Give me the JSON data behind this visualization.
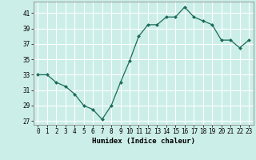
{
  "x": [
    0,
    1,
    2,
    3,
    4,
    5,
    6,
    7,
    8,
    9,
    10,
    11,
    12,
    13,
    14,
    15,
    16,
    17,
    18,
    19,
    20,
    21,
    22,
    23
  ],
  "y": [
    33,
    33,
    32,
    31.5,
    30.5,
    29,
    28.5,
    27.2,
    29,
    32,
    34.8,
    38,
    39.5,
    39.5,
    40.5,
    40.5,
    41.8,
    40.5,
    40,
    39.5,
    37.5,
    37.5,
    36.5,
    37.5
  ],
  "line_color": "#1a6b5a",
  "marker": "D",
  "marker_size": 2.0,
  "bg_color": "#cceee8",
  "grid_color": "#ffffff",
  "xlabel": "Humidex (Indice chaleur)",
  "ylim": [
    26.5,
    42.5
  ],
  "xlim": [
    -0.5,
    23.5
  ],
  "yticks": [
    27,
    29,
    31,
    33,
    35,
    37,
    39,
    41
  ],
  "xticks": [
    0,
    1,
    2,
    3,
    4,
    5,
    6,
    7,
    8,
    9,
    10,
    11,
    12,
    13,
    14,
    15,
    16,
    17,
    18,
    19,
    20,
    21,
    22,
    23
  ],
  "tick_fontsize": 5.5,
  "label_fontsize": 6.5
}
